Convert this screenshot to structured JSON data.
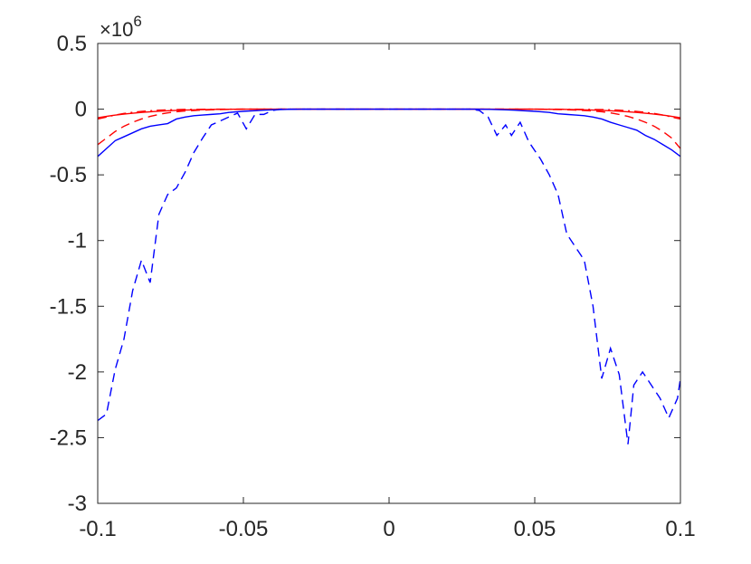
{
  "chart_data": {
    "type": "line",
    "title": "",
    "xlabel": "",
    "ylabel": "",
    "xlim": [
      -0.1,
      0.1
    ],
    "ylim": [
      -3,
      0.5
    ],
    "y_multiplier": "×10",
    "y_exponent": "6",
    "grid": false,
    "legend": "none",
    "x_ticks": [
      -0.1,
      -0.05,
      0,
      0.05,
      0.1
    ],
    "x_tick_labels": [
      "-0.1",
      "-0.05",
      "0",
      "0.05",
      "0.1"
    ],
    "y_ticks": [
      0.5,
      0,
      -0.5,
      -1,
      -1.5,
      -2,
      -2.5,
      -3
    ],
    "y_tick_labels": [
      "0.5",
      "0",
      "-0.5",
      "-1",
      "-1.5",
      "-2",
      "-2.5",
      "-3"
    ],
    "series": [
      {
        "color": "#ff0000",
        "style": "dashdot",
        "x": [
          -0.1,
          -0.097,
          -0.094,
          -0.091,
          -0.088,
          -0.085,
          -0.082,
          -0.079,
          -0.076,
          -0.07,
          -0.06,
          -0.05,
          0,
          0.05,
          0.06,
          0.07,
          0.076,
          0.079,
          0.082,
          0.085,
          0.088,
          0.091,
          0.094,
          0.097,
          0.1
        ],
        "y": [
          -0.075,
          -0.06,
          -0.045,
          -0.033,
          -0.024,
          -0.017,
          -0.012,
          -0.008,
          -0.005,
          -0.002,
          -0.0005,
          0,
          0,
          0,
          -0.0005,
          -0.002,
          -0.005,
          -0.008,
          -0.012,
          -0.017,
          -0.024,
          -0.033,
          -0.045,
          -0.06,
          -0.075
        ]
      },
      {
        "color": "#ff0000",
        "style": "solid",
        "x": [
          -0.1,
          -0.095,
          -0.09,
          -0.085,
          -0.08,
          -0.075,
          -0.07,
          -0.065,
          -0.06,
          -0.05,
          0,
          0.05,
          0.06,
          0.065,
          0.07,
          0.075,
          0.08,
          0.085,
          0.09,
          0.095,
          0.1
        ],
        "y": [
          -0.065,
          -0.048,
          -0.035,
          -0.025,
          -0.017,
          -0.011,
          -0.007,
          -0.004,
          -0.002,
          0,
          0,
          0,
          -0.002,
          -0.004,
          -0.007,
          -0.011,
          -0.017,
          -0.025,
          -0.035,
          -0.048,
          -0.065
        ]
      },
      {
        "color": "#ff0000",
        "style": "dashed",
        "x": [
          -0.1,
          -0.097,
          -0.094,
          -0.091,
          -0.088,
          -0.085,
          -0.082,
          -0.079,
          -0.076,
          -0.073,
          -0.07,
          -0.065,
          -0.06,
          -0.05,
          0,
          0.05,
          0.06,
          0.065,
          0.07,
          0.073,
          0.076,
          0.079,
          0.082,
          0.085,
          0.088,
          0.091,
          0.094,
          0.097,
          0.1
        ],
        "y": [
          -0.27,
          -0.22,
          -0.17,
          -0.13,
          -0.1,
          -0.075,
          -0.055,
          -0.04,
          -0.028,
          -0.02,
          -0.014,
          -0.008,
          -0.004,
          0,
          0,
          0,
          -0.004,
          -0.008,
          -0.014,
          -0.02,
          -0.028,
          -0.04,
          -0.055,
          -0.075,
          -0.1,
          -0.13,
          -0.17,
          -0.22,
          -0.3
        ]
      },
      {
        "color": "#0000ff",
        "style": "solid",
        "x": [
          -0.1,
          -0.097,
          -0.094,
          -0.091,
          -0.088,
          -0.085,
          -0.082,
          -0.079,
          -0.076,
          -0.073,
          -0.07,
          -0.067,
          -0.064,
          -0.061,
          -0.058,
          -0.055,
          -0.052,
          -0.049,
          -0.046,
          -0.043,
          -0.04,
          -0.035,
          -0.03,
          0,
          0.03,
          0.035,
          0.04,
          0.043,
          0.046,
          0.049,
          0.052,
          0.055,
          0.058,
          0.061,
          0.064,
          0.067,
          0.07,
          0.073,
          0.076,
          0.079,
          0.082,
          0.085,
          0.088,
          0.091,
          0.094,
          0.097,
          0.1
        ],
        "y": [
          -0.36,
          -0.3,
          -0.24,
          -0.21,
          -0.18,
          -0.15,
          -0.13,
          -0.12,
          -0.11,
          -0.075,
          -0.06,
          -0.05,
          -0.045,
          -0.04,
          -0.035,
          -0.025,
          -0.02,
          -0.015,
          -0.012,
          -0.008,
          -0.005,
          -0.002,
          0,
          0,
          0,
          -0.002,
          -0.005,
          -0.008,
          -0.012,
          -0.015,
          -0.02,
          -0.025,
          -0.035,
          -0.04,
          -0.045,
          -0.05,
          -0.06,
          -0.075,
          -0.1,
          -0.12,
          -0.14,
          -0.16,
          -0.2,
          -0.23,
          -0.27,
          -0.31,
          -0.36
        ]
      },
      {
        "color": "#0000ff",
        "style": "dashed",
        "x": [
          -0.1,
          -0.097,
          -0.094,
          -0.091,
          -0.088,
          -0.085,
          -0.082,
          -0.079,
          -0.076,
          -0.073,
          -0.07,
          -0.067,
          -0.064,
          -0.061,
          -0.058,
          -0.055,
          -0.052,
          -0.049,
          -0.046,
          -0.043,
          -0.04,
          -0.037,
          -0.034,
          -0.031,
          -0.028,
          -0.025,
          0,
          0.025,
          0.028,
          0.031,
          0.034,
          0.037,
          0.04,
          0.042,
          0.045,
          0.048,
          0.052,
          0.055,
          0.058,
          0.061,
          0.064,
          0.067,
          0.07,
          0.073,
          0.076,
          0.079,
          0.082,
          0.084,
          0.087,
          0.09,
          0.093,
          0.096,
          0.099,
          0.1
        ],
        "y": [
          -2.37,
          -2.32,
          -1.98,
          -1.75,
          -1.38,
          -1.15,
          -1.32,
          -0.8,
          -0.65,
          -0.6,
          -0.48,
          -0.33,
          -0.22,
          -0.12,
          -0.09,
          -0.06,
          -0.03,
          -0.15,
          -0.04,
          -0.04,
          -0.01,
          0,
          0,
          0,
          0,
          0,
          0,
          0,
          0,
          -0.01,
          -0.06,
          -0.2,
          -0.12,
          -0.2,
          -0.1,
          -0.25,
          -0.38,
          -0.5,
          -0.65,
          -0.95,
          -1.05,
          -1.15,
          -1.5,
          -2.05,
          -1.82,
          -2.02,
          -2.55,
          -2.1,
          -2.0,
          -2.1,
          -2.2,
          -2.35,
          -2.2,
          -2.05
        ]
      }
    ]
  }
}
